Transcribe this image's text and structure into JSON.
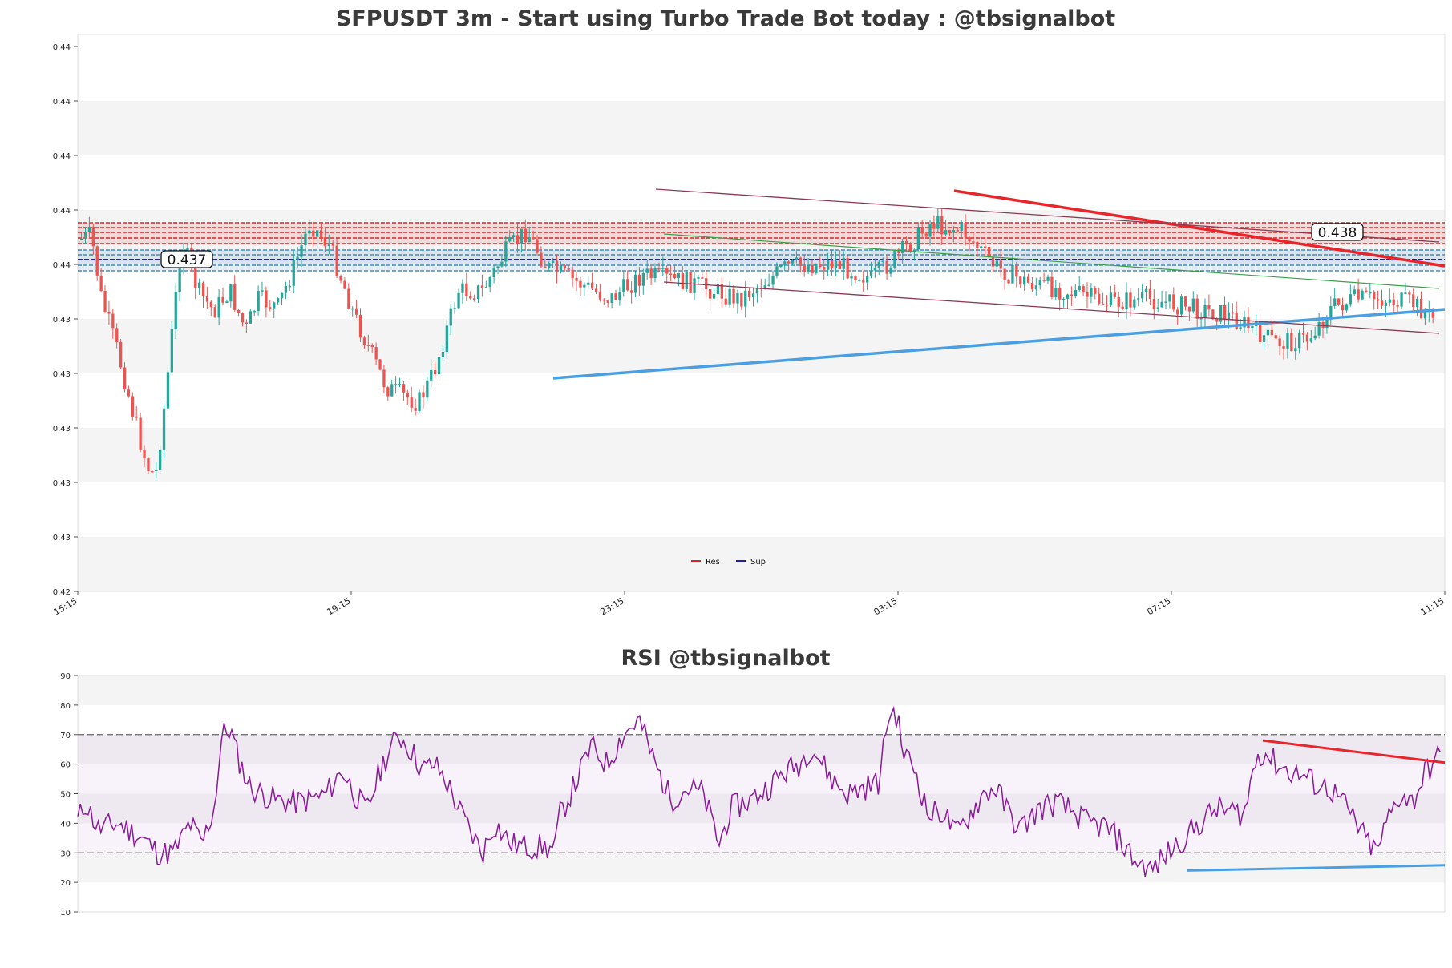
{
  "chart_data": [
    {
      "type": "candlestick",
      "title": "SFPUSDT 3m - Start using Turbo Trade Bot today : @tbsignalbot",
      "ytick_labels": [
        "0.42",
        "0.43",
        "0.43",
        "0.43",
        "0.43",
        "0.43",
        "0.44",
        "0.44",
        "0.44",
        "0.44",
        "0.44"
      ],
      "xtick_labels": [
        "15:15",
        "19:15",
        "23:15",
        "03:15",
        "07:15",
        "11:15"
      ],
      "legend": [
        {
          "name": "Res",
          "color": "#d62728"
        },
        {
          "name": "Sup",
          "color": "#1f1f9f"
        }
      ],
      "legend_position": "bottom-center",
      "resistance_label": "0.438",
      "support_label": "0.437",
      "up_color": "#26a69a",
      "down_color": "#ef5350",
      "grid": true
    },
    {
      "type": "line",
      "title": "RSI @tbsignalbot",
      "ylim": [
        10,
        90
      ],
      "yticks": [
        10,
        20,
        30,
        40,
        50,
        60,
        70,
        80,
        90
      ],
      "reference_lines": [
        30,
        70
      ],
      "line_color": "#8b1a9b",
      "grid": true
    }
  ]
}
